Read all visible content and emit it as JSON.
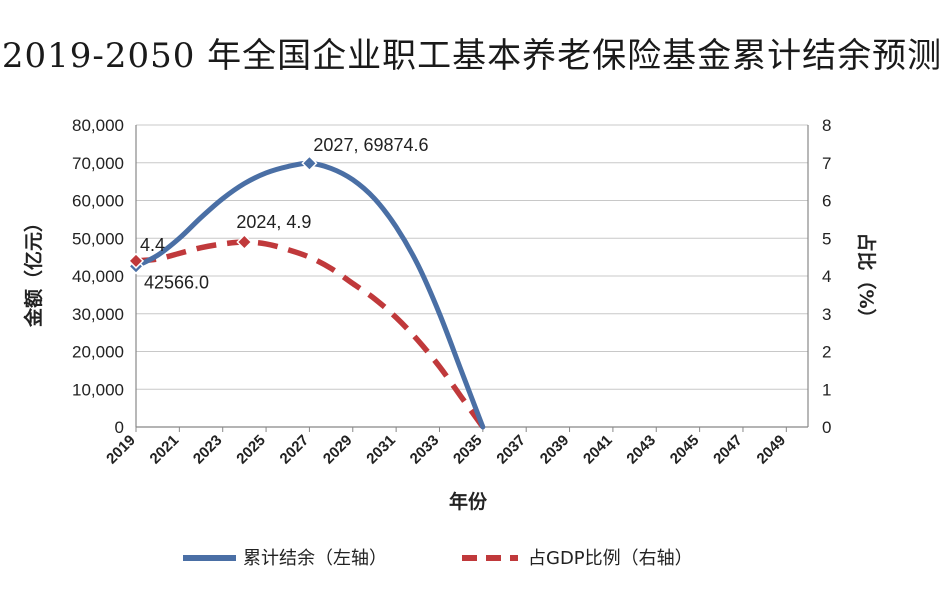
{
  "chart_data": {
    "type": "line",
    "title": "2019-2050 年全国企业职工基本养老保险基金累计结余预测",
    "xlabel": "年份",
    "ylabel_left": "金额（亿元）",
    "ylabel_right": "占比（%）",
    "x": [
      2019,
      2020,
      2021,
      2022,
      2023,
      2024,
      2025,
      2026,
      2027,
      2028,
      2029,
      2030,
      2031,
      2032,
      2033,
      2034,
      2035
    ],
    "x_ticks": [
      "2019",
      "2021",
      "2023",
      "2025",
      "2027",
      "2029",
      "2031",
      "2033",
      "2035",
      "2037",
      "2039",
      "2041",
      "2043",
      "2045",
      "2047",
      "2049"
    ],
    "x_range": [
      2019,
      2050
    ],
    "y_left_ticks": [
      "0",
      "10,000",
      "20,000",
      "30,000",
      "40,000",
      "50,000",
      "60,000",
      "70,000",
      "80,000"
    ],
    "y_left_range": [
      0,
      80000
    ],
    "y_right_ticks": [
      "0",
      "1",
      "2",
      "3",
      "4",
      "5",
      "6",
      "7",
      "8"
    ],
    "y_right_range": [
      0,
      8
    ],
    "grid": true,
    "legend_position": "bottom",
    "series": [
      {
        "name": "累计结余（左轴）",
        "axis": "left",
        "color": "#4a6fa5",
        "style": "solid",
        "values": [
          42566.0,
          45500,
          50000,
          55500,
          60500,
          64500,
          67300,
          69000,
          69874.6,
          68500,
          65500,
          60500,
          53000,
          43000,
          30000,
          15000,
          0
        ]
      },
      {
        "name": "占GDP比例（右轴）",
        "axis": "right",
        "color": "#c0393b",
        "style": "dashed",
        "values": [
          4.4,
          4.45,
          4.6,
          4.75,
          4.85,
          4.9,
          4.85,
          4.7,
          4.5,
          4.2,
          3.8,
          3.4,
          2.9,
          2.3,
          1.6,
          0.8,
          0.0
        ]
      }
    ],
    "annotations": [
      {
        "text": "2027, 69874.6",
        "series": 0,
        "x": 2027
      },
      {
        "text": "2024, 4.9",
        "series": 1,
        "x": 2024
      },
      {
        "text": "4.4",
        "series": 1,
        "x": 2019
      },
      {
        "text": "42566.0",
        "series": 0,
        "x": 2019
      }
    ]
  }
}
